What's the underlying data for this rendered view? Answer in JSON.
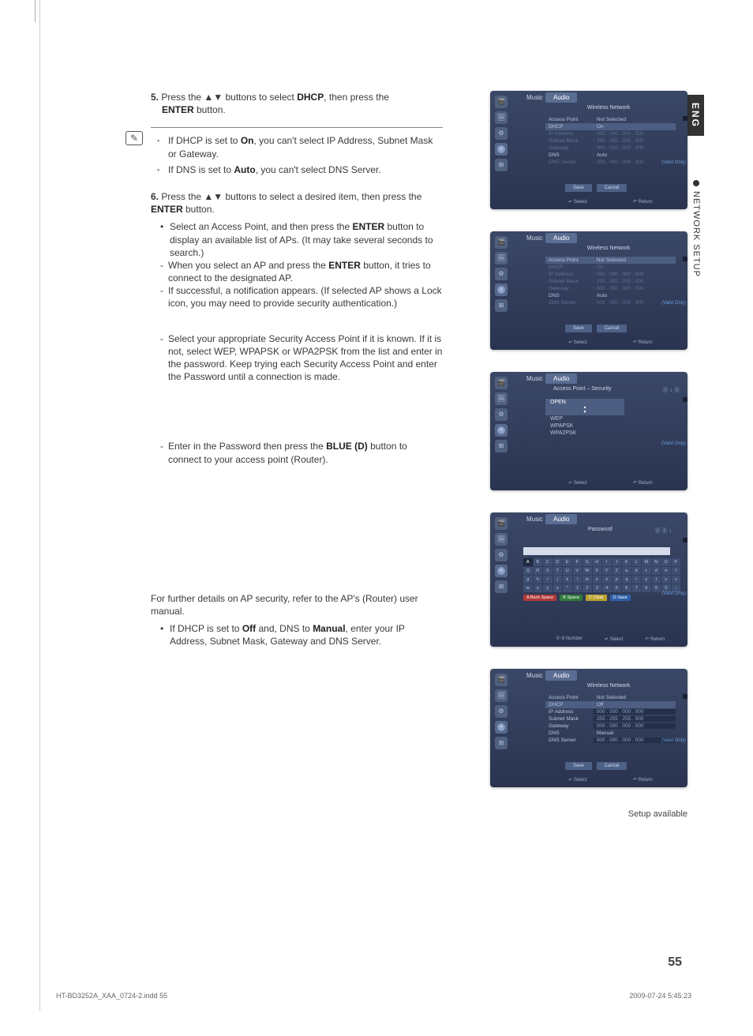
{
  "lang_tab": "ENG",
  "section_tab": "NETWORK SETUP",
  "page_number": "55",
  "footer_left": "HT-BD3252A_XAA_0724-2.indd   55",
  "footer_right": "2009-07-24     5:45:23",
  "setup_available": "Setup available",
  "steps": {
    "s5_num": "5.",
    "s5_text_a": "Press the ▲▼ buttons to select ",
    "s5_bold": "DHCP",
    "s5_text_b": ", then press the ",
    "s5_bold2": "ENTER",
    "s5_text_c": " button.",
    "note1_a": "If DHCP is set to ",
    "note1_bold": "On",
    "note1_b": ", you can't select IP Address, Subnet Mask or Gateway.",
    "note2_a": "If DNS is set to ",
    "note2_bold": "Auto",
    "note2_b": ", you can't select  DNS Server.",
    "s6_num": "6.",
    "s6_text_a": "Press the ▲▼ buttons to select a desired item, then press the ",
    "s6_bold": "ENTER",
    "s6_text_b": " button.",
    "s6_b1_a": "Select an Access Point, and then press the ",
    "s6_b1_bold": "ENTER",
    "s6_b1_b": " button to display an available list of APs. (It may take several seconds to search.)",
    "s6_d1_a": "When you select an AP and press the ",
    "s6_d1_bold": "ENTER",
    "s6_d1_b": " button, it tries to connect to the designated AP.",
    "s6_d2": "If successful, a notification appears. (If selected AP shows a Lock icon, you may need to provide security authentication.)",
    "s6_d3": "Select your appropriate Security Access Point if it is known. If it is not, select WEP, WPAPSK or WPA2PSK from the list and enter in the password. Keep trying each Security Access Point and enter the Password until a connection is made.",
    "s6_d4_a": "Enter in the Password then press the ",
    "s6_d4_bold": "BLUE (D)",
    "s6_d4_b": " button to connect to your access point (Router).",
    "further": "For further details on AP security, refer to the AP's (Router) user manual.",
    "off_a": "If DHCP is set to ",
    "off_bold1": "Off",
    "off_b": " and, DNS to ",
    "off_bold2": "Manual",
    "off_c": ", enter your IP Address, Subnet Mask, Gateway and DNS Server."
  },
  "shots": {
    "music": "Music",
    "audio": "Audio",
    "wireless": "Wireless Network",
    "valid": "(Valid Only)",
    "select": "↵ Select",
    "return": "↶ Return",
    "number": "0~9 Number",
    "save": "Save",
    "cancel": "Cancel",
    "rows_on": [
      {
        "l": "Access Point",
        "r": "Not Selected",
        "hi": false
      },
      {
        "l": "DHCP",
        "r": "On",
        "hi": true
      },
      {
        "l": "IP Address",
        "r": "000 . 000 . 000 . 000",
        "dim": true
      },
      {
        "l": "Subnet Mask",
        "r": "255 . 255 . 255 . 000",
        "dim": true
      },
      {
        "l": "Gateway",
        "r": "000 . 000 . 000 . 000",
        "dim": true
      },
      {
        "l": "DNS",
        "r": "Auto",
        "hi": false
      },
      {
        "l": "DNS Server",
        "r": "000 . 000 . 000 . 000",
        "dim": true
      }
    ],
    "rows_ap": [
      {
        "l": "Access Point",
        "r": "Not Selected",
        "hi": true
      },
      {
        "l": "DHCP",
        "r": "On",
        "dim": true
      },
      {
        "l": "IP Address",
        "r": "000 . 000 . 000 . 000",
        "dim": true
      },
      {
        "l": "Subnet Mask",
        "r": "255 . 255 . 255 . 000",
        "dim": true
      },
      {
        "l": "Gateway",
        "r": "000 . 000 . 000 . 000",
        "dim": true
      },
      {
        "l": "DNS",
        "r": "Auto",
        "hi": false
      },
      {
        "l": "DNS Server",
        "r": "000 . 000 . 000 . 000",
        "dim": true
      }
    ],
    "rows_off": [
      {
        "l": "Access Point",
        "r": "Not Selected",
        "hi": false
      },
      {
        "l": "DHCP",
        "r": "Off",
        "hi": true
      },
      {
        "l": "IP Address",
        "r": "000 . 000 . 000 . 000",
        "box": true
      },
      {
        "l": "Subnet Mask",
        "r": "255 . 255 . 255 . 000",
        "box": true
      },
      {
        "l": "Gateway",
        "r": "000 . 000 . 000 . 000",
        "box": true
      },
      {
        "l": "DNS",
        "r": "Manual",
        "hi": false
      },
      {
        "l": "DNS Server",
        "r": "000 . 000 . 000 . 000",
        "box": true
      }
    ],
    "sec_title": "Access Point – Security",
    "sec_items": [
      "OPEN",
      "WEP",
      "WPAPSK",
      "WPA2PSK"
    ],
    "pwd_title": "Password",
    "kb": [
      "A",
      "B",
      "C",
      "D",
      "E",
      "F",
      "G",
      "H",
      "I",
      "J",
      "K",
      "L",
      "M",
      "N",
      "O",
      "P",
      "Q",
      "R",
      "S",
      "T",
      "U",
      "V",
      "W",
      "X",
      "Y",
      "Z",
      "a",
      "b",
      "c",
      "d",
      "e",
      "f",
      "g",
      "h",
      "i",
      "j",
      "k",
      "l",
      "m",
      "n",
      "o",
      "p",
      "q",
      "r",
      "s",
      "t",
      "u",
      "v",
      "w",
      "x",
      "y",
      "z",
      "*",
      "1",
      "2",
      "3",
      "4",
      "5",
      "6",
      "7",
      "8",
      "9",
      "0",
      "−"
    ],
    "kb_actions": [
      {
        "t": "A Back Space",
        "c": "#b03838"
      },
      {
        "t": "B Space",
        "c": "#2f7a3a"
      },
      {
        "t": "C Clear",
        "c": "#b8a22f"
      },
      {
        "t": "D Save",
        "c": "#2f5fa8"
      }
    ]
  }
}
